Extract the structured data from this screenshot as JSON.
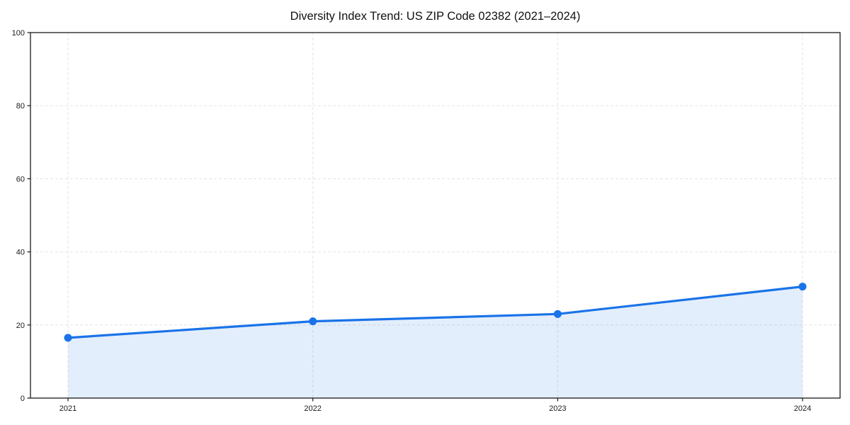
{
  "chart_data": {
    "type": "area",
    "title": "Diversity Index Trend: US ZIP Code 02382 (2021–2024)",
    "categories": [
      "2021",
      "2022",
      "2023",
      "2024"
    ],
    "series": [
      {
        "name": "Diversity Index",
        "values": [
          16.5,
          21,
          23,
          30.5
        ]
      }
    ],
    "xlabel": "",
    "ylabel": "",
    "ylim": [
      0,
      100
    ],
    "yticks": [
      0,
      20,
      40,
      60,
      80,
      100
    ],
    "grid": true,
    "grid_style": "dashed",
    "legend_position": "none",
    "colors": {
      "line": "#1a73e8",
      "marker": "#1a73e8",
      "area_fill": "rgba(26,115,232,0.12)",
      "grid": "#e3e3e3",
      "axis": "#1a1a1a",
      "text": "#1a1a1a",
      "background": "#ffffff"
    }
  }
}
